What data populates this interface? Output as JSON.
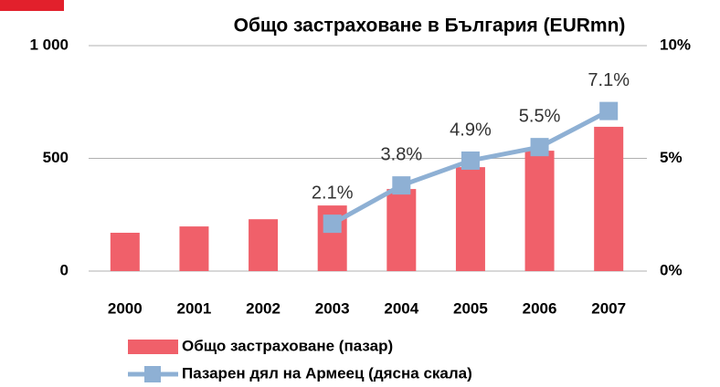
{
  "chart_data": {
    "type": "bar",
    "title": "Общо застраховане в България (EURmn)",
    "categories": [
      "2000",
      "2001",
      "2002",
      "2003",
      "2004",
      "2005",
      "2006",
      "2007"
    ],
    "series": [
      {
        "name": "Общо застраховане  (пазар)",
        "type": "bar",
        "color": "#f0606a",
        "values": [
          170,
          198,
          230,
          291,
          364,
          461,
          534,
          640
        ]
      },
      {
        "name": "Пазарен дял на Армеец (дясна скала)",
        "type": "line",
        "axis": "y2",
        "color": "#8eb0d4",
        "values": [
          null,
          null,
          null,
          2.1,
          3.8,
          4.9,
          5.5,
          7.1
        ],
        "value_labels": [
          null,
          null,
          null,
          "2.1%",
          "3.8%",
          "4.9%",
          "5.5%",
          "7.1%"
        ]
      }
    ],
    "ylim": [
      0,
      1000
    ],
    "yticks": [
      0,
      500,
      {
        "value": 1000,
        "label": "1 000"
      }
    ],
    "y2lim": [
      0,
      10
    ],
    "y2ticks": [
      {
        "value": 0,
        "label": "0%"
      },
      {
        "value": 5,
        "label": "5%"
      },
      {
        "value": 10,
        "label": "10%"
      }
    ],
    "grid": true,
    "legend": "bottom"
  }
}
